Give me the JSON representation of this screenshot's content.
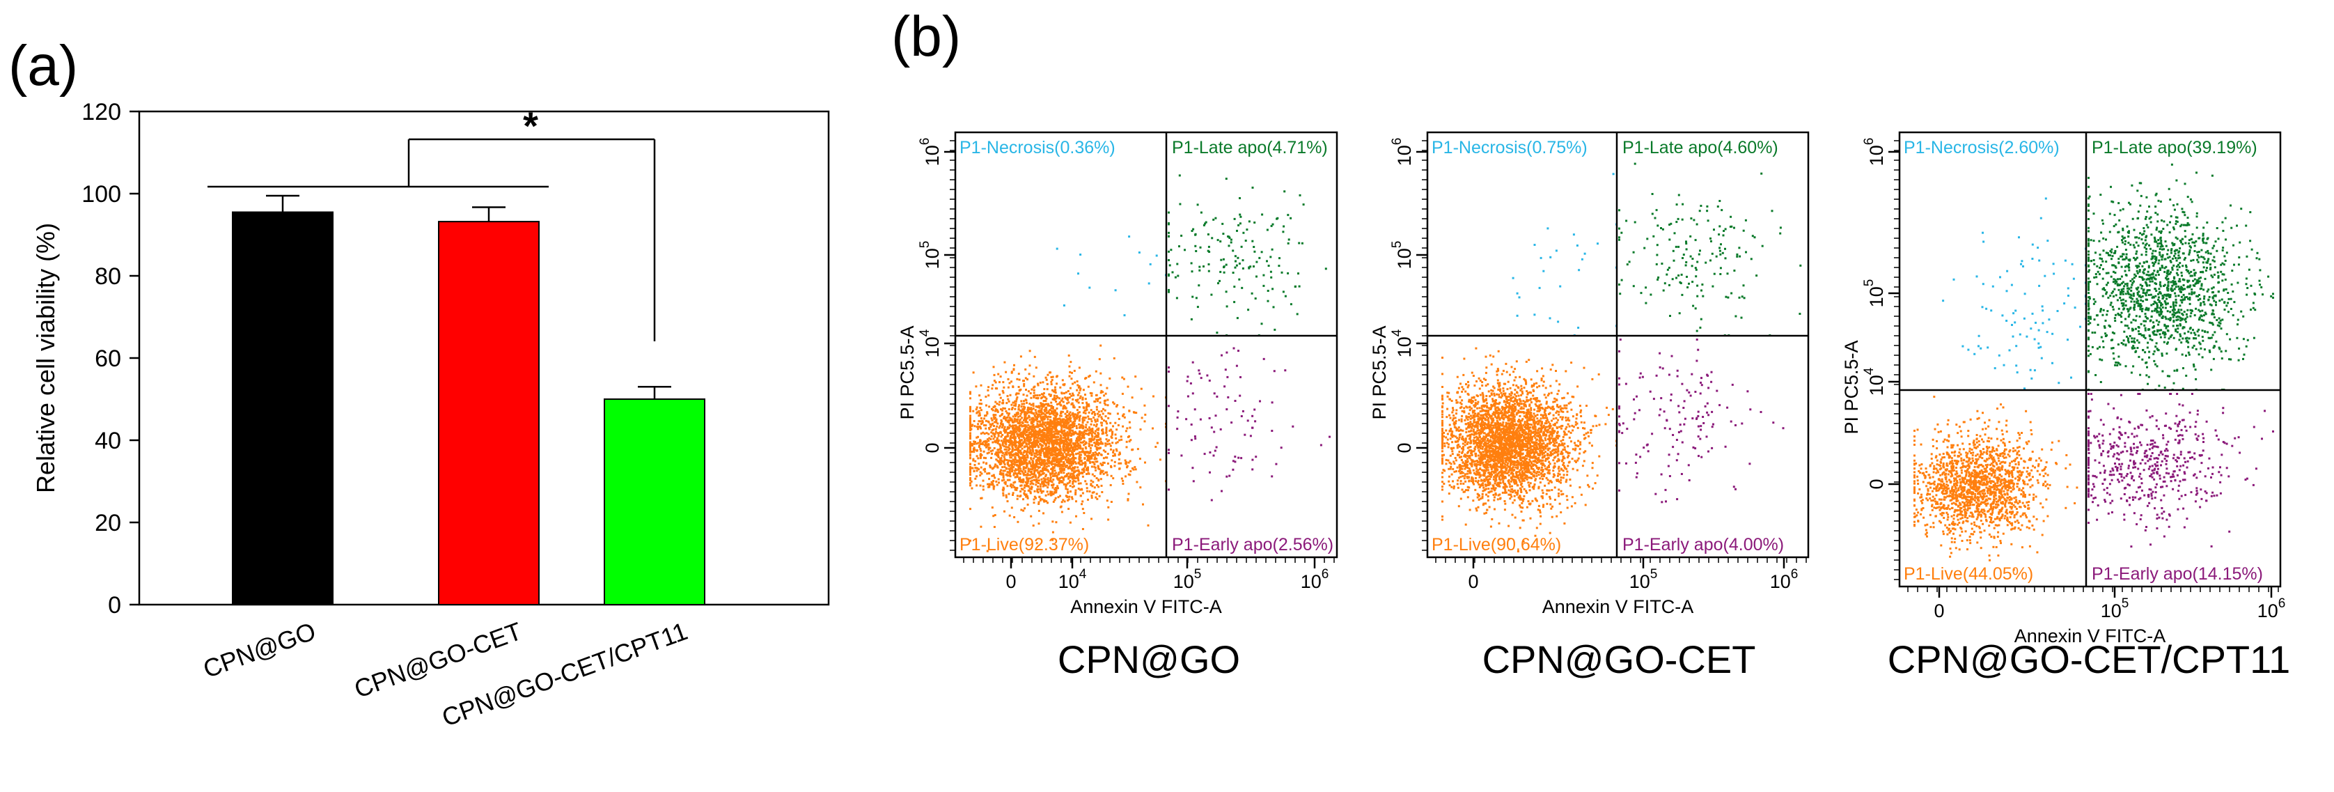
{
  "panel_a": {
    "label": "(a)",
    "significance_marker": "*"
  },
  "panel_b": {
    "label": "(b)"
  },
  "colors": {
    "black_bar": "#000000",
    "red_bar": "#ff0000",
    "green_bar": "#00ff00",
    "live": "#ff7f0e",
    "necrosis": "#29b6e6",
    "late_apo": "#0a7a2a",
    "early_apo": "#8b1a7a",
    "axis": "#000000"
  },
  "chart_data": [
    {
      "type": "bar",
      "title": "",
      "xlabel": "",
      "ylabel": "Relative cell viability (%)",
      "ylim": [
        0,
        120
      ],
      "yticks": [
        0,
        20,
        40,
        60,
        80,
        100,
        120
      ],
      "categories": [
        "CPN@GO",
        "CPN@GO-CET",
        "CPN@GO-CET/CPT11"
      ],
      "values": [
        95.5,
        93.2,
        50.0
      ],
      "errors": [
        4.0,
        3.5,
        3.0
      ],
      "bar_colors": [
        "#000000",
        "#ff0000",
        "#00ff00"
      ]
    },
    {
      "type": "scatter",
      "title": "CPN@GO",
      "xlabel": "Annexin V FITC-A",
      "ylabel": "PI PC5.5-A",
      "xticks": [
        "0",
        "10^4",
        "10^5",
        "10^6"
      ],
      "yticks": [
        "0",
        "10^4",
        "10^5",
        "10^6"
      ],
      "quadrants": {
        "necrosis": {
          "label": "P1-Necrosis",
          "percent": "0.36%"
        },
        "late_apo": {
          "label": "P1-Late apo",
          "percent": "4.71%"
        },
        "live": {
          "label": "P1-Live",
          "percent": "92.37%"
        },
        "early_apo": {
          "label": "P1-Early apo",
          "percent": "2.56%"
        }
      }
    },
    {
      "type": "scatter",
      "title": "CPN@GO-CET",
      "xlabel": "Annexin V FITC-A",
      "ylabel": "PI PC5.5-A",
      "xticks": [
        "0",
        "10^4",
        "10^5",
        "10^6"
      ],
      "yticks": [
        "0",
        "10^4",
        "10^5",
        "10^6"
      ],
      "quadrants": {
        "necrosis": {
          "label": "P1-Necrosis",
          "percent": "0.75%"
        },
        "late_apo": {
          "label": "P1-Late apo",
          "percent": "4.60%"
        },
        "live": {
          "label": "P1-Live",
          "percent": "90.64%"
        },
        "early_apo": {
          "label": "P1-Early apo",
          "percent": "4.00%"
        }
      }
    },
    {
      "type": "scatter",
      "title": "CPN@GO-CET/CPT11",
      "xlabel": "Annexin V FITC-A",
      "ylabel": "PI PC5.5-A",
      "xticks": [
        "0",
        "10^5",
        "10^6"
      ],
      "yticks": [
        "0",
        "10^4",
        "10^5",
        "10^6"
      ],
      "quadrants": {
        "necrosis": {
          "label": "P1-Necrosis",
          "percent": "2.60%"
        },
        "late_apo": {
          "label": "P1-Late apo",
          "percent": "39.19%"
        },
        "live": {
          "label": "P1-Live",
          "percent": "44.05%"
        },
        "early_apo": {
          "label": "P1-Early apo",
          "percent": "14.15%"
        }
      }
    }
  ]
}
